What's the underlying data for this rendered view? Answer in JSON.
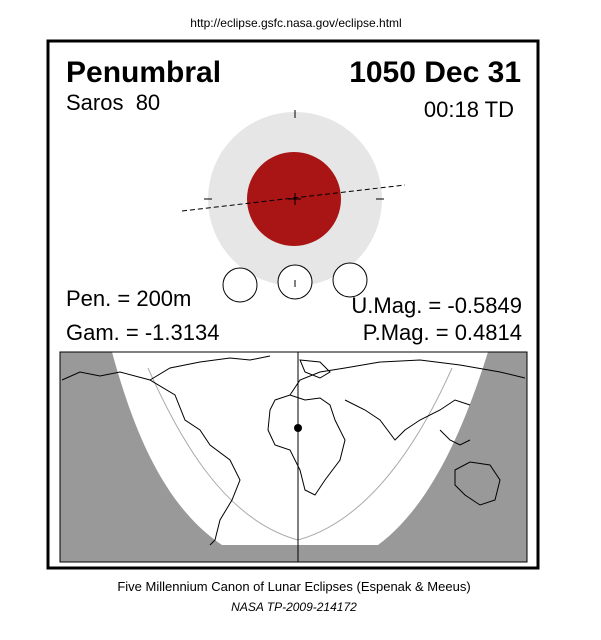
{
  "header": {
    "url": "http://eclipse.gsfc.nasa.gov/eclipse.html"
  },
  "eclipse": {
    "type": "Penumbral",
    "date": "1050 Dec 31",
    "saros": "Saros  80",
    "time": "00:18 TD",
    "penumbral_duration": "Pen. = 200m",
    "gamma": "Gam. = -1.3134",
    "umbral_magnitude": "U.Mag. = -0.5849",
    "penumbral_magnitude": "P.Mag. = 0.4814"
  },
  "footer": {
    "line1": "Five Millennium Canon of Lunar Eclipses (Espenak & Meeus)",
    "line2": "NASA TP-2009-214172"
  }
}
